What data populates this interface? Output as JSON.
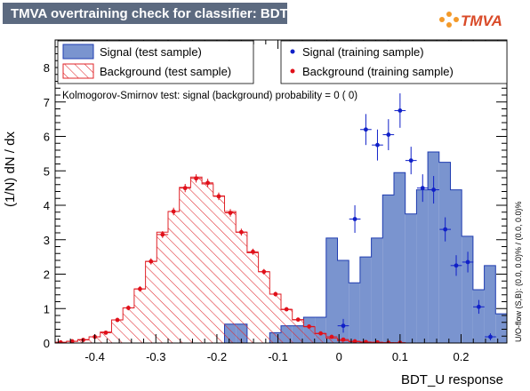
{
  "title": "TMVA overtraining check for classifier: BDT_U",
  "logo": {
    "text": "TMVA",
    "text_color": "#d94a28",
    "dot_color": "#f39a2a"
  },
  "ks_text": "Kolmogorov-Smirnov test: signal (background) probability =     0 (     0)",
  "side_text": "U/O-flow (S,B): (0.0, 0.0)% / (0.0, 0.0)%",
  "colors": {
    "signal_fill": "#7a94cf",
    "signal_line": "#1f3cb0",
    "background_line": "#e0242a",
    "signal_points": "#1020c8",
    "background_points": "#e0101a",
    "title_bg": "#5c6a80"
  },
  "chart_data": {
    "type": "histogram",
    "xlabel": "BDT_U response",
    "ylabel": "(1/N) dN / dx",
    "xlim": [
      -0.465,
      0.275
    ],
    "ylim": [
      0,
      8.8
    ],
    "x_ticks": [
      "-0.4",
      "-0.3",
      "-0.2",
      "-0.1",
      "0",
      "0.1",
      "0.2"
    ],
    "x_tick_values": [
      -0.4,
      -0.3,
      -0.2,
      -0.1,
      0,
      0.1,
      0.2
    ],
    "y_ticks": [
      "0",
      "1",
      "2",
      "3",
      "4",
      "5",
      "6",
      "7",
      "8"
    ],
    "y_tick_values": [
      0,
      1,
      2,
      3,
      4,
      5,
      6,
      7,
      8
    ],
    "bins": {
      "start": -0.465,
      "width": 0.0185,
      "count": 40,
      "centers": [
        -0.456,
        -0.437,
        -0.419,
        -0.4,
        -0.382,
        -0.363,
        -0.345,
        -0.326,
        -0.308,
        -0.289,
        -0.271,
        -0.252,
        -0.234,
        -0.215,
        -0.197,
        -0.178,
        -0.16,
        -0.141,
        -0.123,
        -0.104,
        -0.086,
        -0.067,
        -0.049,
        -0.03,
        -0.012,
        0.007,
        0.026,
        0.044,
        0.063,
        0.081,
        0.1,
        0.118,
        0.137,
        0.155,
        0.174,
        0.192,
        0.211,
        0.229,
        0.248,
        0.266
      ]
    },
    "series": [
      {
        "name": "Signal (test sample)",
        "type": "hist-filled",
        "values": [
          0,
          0,
          0,
          0,
          0,
          0,
          0,
          0,
          0,
          0,
          0,
          0,
          0,
          0,
          0,
          0.55,
          0.55,
          0,
          0,
          0.3,
          0.5,
          0.5,
          0.75,
          0.75,
          3.05,
          2.4,
          1.75,
          2.5,
          3.05,
          4.3,
          4.95,
          3.75,
          4.45,
          5.55,
          5.25,
          4.45,
          3.1,
          1.55,
          2.25,
          0.85
        ]
      },
      {
        "name": "Background (test sample)",
        "type": "hist-hatched",
        "values": [
          0.02,
          0.05,
          0.1,
          0.18,
          0.32,
          0.67,
          1.02,
          1.57,
          2.37,
          3.22,
          3.82,
          4.52,
          4.82,
          4.62,
          4.27,
          3.82,
          3.22,
          2.62,
          2.07,
          1.42,
          0.97,
          0.67,
          0.47,
          0.27,
          0.14,
          0.07,
          0.04,
          0.02,
          0.02,
          0.01,
          0,
          0,
          0,
          0,
          0,
          0,
          0,
          0,
          0,
          0
        ]
      },
      {
        "name": "Signal (training sample)",
        "type": "points",
        "values": [
          null,
          null,
          null,
          null,
          null,
          null,
          null,
          null,
          null,
          null,
          null,
          null,
          null,
          null,
          null,
          null,
          null,
          null,
          null,
          null,
          null,
          null,
          null,
          null,
          null,
          0.5,
          3.6,
          6.2,
          5.75,
          6.05,
          6.75,
          5.3,
          4.5,
          4.45,
          3.3,
          2.25,
          2.35,
          1.05,
          0.18,
          null
        ],
        "errors": [
          null,
          null,
          null,
          null,
          null,
          null,
          null,
          null,
          null,
          null,
          null,
          null,
          null,
          null,
          null,
          null,
          null,
          null,
          null,
          null,
          null,
          null,
          null,
          null,
          null,
          0.2,
          0.4,
          0.45,
          0.45,
          0.45,
          0.5,
          0.4,
          0.4,
          0.4,
          0.35,
          0.3,
          0.3,
          0.2,
          0.1,
          null
        ]
      },
      {
        "name": "Background (training sample)",
        "type": "points",
        "values": [
          0.02,
          0.05,
          0.09,
          0.18,
          0.3,
          0.67,
          1.02,
          1.57,
          2.37,
          3.15,
          3.82,
          4.5,
          4.78,
          4.65,
          4.26,
          3.78,
          3.22,
          2.65,
          2.07,
          1.42,
          0.98,
          0.68,
          0.48,
          0.28,
          0.18,
          0.1,
          0.05,
          0.03,
          0.02,
          0.01,
          0.01,
          null,
          null,
          null,
          null,
          null,
          null,
          null,
          null,
          null
        ],
        "errors": [
          0.01,
          0.02,
          0.02,
          0.04,
          0.05,
          0.06,
          0.07,
          0.08,
          0.09,
          0.1,
          0.11,
          0.12,
          0.12,
          0.12,
          0.11,
          0.11,
          0.1,
          0.09,
          0.08,
          0.07,
          0.06,
          0.05,
          0.04,
          0.03,
          0.03,
          0.02,
          0.02,
          0.01,
          0.01,
          0.01,
          0.01,
          null,
          null,
          null,
          null,
          null,
          null,
          null,
          null,
          null
        ]
      }
    ]
  }
}
